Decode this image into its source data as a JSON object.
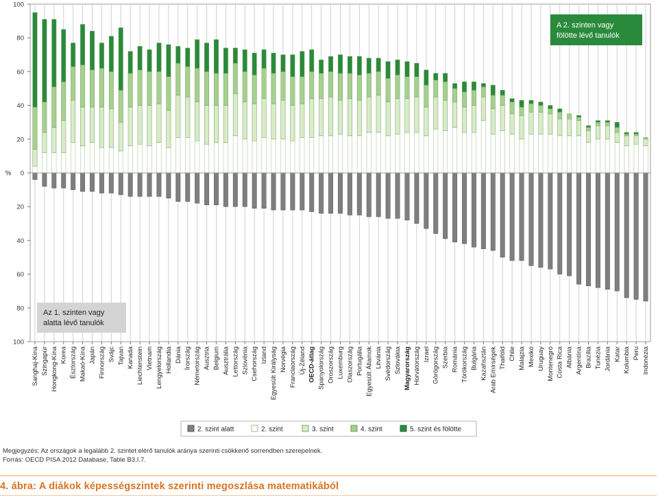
{
  "chart_data": {
    "type": "bar",
    "stacked": true,
    "y_axis_label": "%",
    "y_ticks": [
      100,
      80,
      60,
      40,
      20,
      0,
      20,
      40,
      60,
      80,
      100
    ],
    "ylim": [
      -100,
      100
    ],
    "grid": false,
    "legend_position": "bottom",
    "annotation_top_right": "A 2. szinten vagy fölötte lévő tanulók",
    "annotation_bottom_left": "Az 1. szinten vagy alatta lévő tanulók",
    "bold_categories": [
      "OECD-átlag",
      "Magyarország"
    ],
    "categories": [
      "Sanghaj-Kína",
      "Szingapúr",
      "Hongkong-Kína",
      "Korea",
      "Észtország",
      "Makaó-Kína",
      "Japán",
      "Finnország",
      "Svájc",
      "Tajvan",
      "Kanada",
      "Liechtenstein",
      "Vietnam",
      "Lengyelország",
      "Hollandia",
      "Dánia",
      "Írország",
      "Németország",
      "Ausztria",
      "Belgium",
      "Ausztrália",
      "Lettország",
      "Szlovénia",
      "Csehország",
      "Izland",
      "Egyesült Királyság",
      "Norvégia",
      "Franciaország",
      "Új-Zéland",
      "OECD-átlag",
      "Spanyolország",
      "Oroszország",
      "Luxemburg",
      "Olaszország",
      "Portugália",
      "Egyesült Államok",
      "Litvánia",
      "Svédország",
      "Szlovákia",
      "Magyarország",
      "Horvátország",
      "Izrael",
      "Görögország",
      "Szerbia",
      "Románia",
      "Törökország",
      "Bulgária",
      "Kazahsztán",
      "Arab Emírségek",
      "Thaiföld",
      "Chile",
      "Malajzia",
      "Mexikó",
      "Uruguay",
      "Montenegró",
      "Costa Rica",
      "Albánia",
      "Argentína",
      "Brazília",
      "Tunézia",
      "Jordánia",
      "Katar",
      "Kolumbia",
      "Peru",
      "Indonézia"
    ],
    "series": [
      {
        "name": "2. szint alatt",
        "color": "#7f7f7f",
        "values": [
          -4,
          -8,
          -9,
          -9,
          -10,
          -11,
          -11,
          -12,
          -12,
          -13,
          -14,
          -14,
          -14,
          -14,
          -15,
          -17,
          -17,
          -18,
          -19,
          -19,
          -20,
          -20,
          -20,
          -21,
          -21,
          -22,
          -22,
          -22,
          -22,
          -23,
          -24,
          -24,
          -24,
          -25,
          -25,
          -26,
          -26,
          -27,
          -27,
          -28,
          -30,
          -33,
          -36,
          -39,
          -41,
          -42,
          -44,
          -45,
          -46,
          -50,
          -52,
          -52,
          -55,
          -56,
          -57,
          -60,
          -61,
          -66,
          -67,
          -68,
          -69,
          -70,
          -74,
          -75,
          -76
        ]
      },
      {
        "name": "2. szint",
        "color": "#ffffff",
        "values": [
          4,
          12,
          12,
          12,
          18,
          16,
          18,
          15,
          15,
          13,
          16,
          17,
          16,
          18,
          15,
          21,
          21,
          19,
          17,
          18,
          18,
          22,
          20,
          19,
          21,
          20,
          20,
          19,
          21,
          21,
          22,
          22,
          23,
          22,
          22,
          24,
          24,
          22,
          23,
          24,
          24,
          22,
          26,
          25,
          27,
          24,
          24,
          31,
          23,
          25,
          23,
          20,
          23,
          23,
          23,
          22,
          22,
          22,
          18,
          20,
          20,
          18,
          16,
          17,
          16
        ]
      },
      {
        "name": "3. szint",
        "color": "#d8ecc8",
        "values": [
          10,
          12,
          15,
          19,
          25,
          23,
          21,
          24,
          23,
          17,
          23,
          23,
          24,
          23,
          22,
          25,
          24,
          23,
          23,
          22,
          22,
          25,
          22,
          22,
          23,
          21,
          23,
          21,
          20,
          23,
          22,
          23,
          20,
          22,
          21,
          21,
          22,
          20,
          21,
          20,
          21,
          17,
          19,
          18,
          15,
          15,
          16,
          14,
          15,
          15,
          12,
          14,
          13,
          13,
          12,
          10,
          10,
          9,
          7,
          8,
          8,
          6,
          6,
          5,
          4
        ]
      },
      {
        "name": "4. szint",
        "color": "#a6d08e",
        "values": [
          25,
          18,
          24,
          23,
          20,
          25,
          22,
          23,
          22,
          19,
          20,
          21,
          20,
          19,
          20,
          19,
          18,
          20,
          20,
          19,
          19,
          18,
          18,
          17,
          18,
          18,
          17,
          17,
          16,
          16,
          15,
          15,
          16,
          15,
          15,
          14,
          14,
          14,
          14,
          13,
          12,
          13,
          10,
          11,
          8,
          9,
          9,
          6,
          8,
          6,
          7,
          5,
          5,
          4,
          3,
          4,
          3,
          2,
          2,
          2,
          2,
          3,
          1,
          1,
          1
        ]
      },
      {
        "name": "5. szint és fölötte",
        "color": "#2a8a3c",
        "values": [
          56,
          49,
          40,
          31,
          14,
          24,
          23,
          15,
          21,
          37,
          13,
          14,
          13,
          17,
          19,
          10,
          11,
          17,
          17,
          20,
          15,
          9,
          13,
          13,
          11,
          12,
          10,
          13,
          15,
          13,
          8,
          9,
          11,
          10,
          11,
          9,
          8,
          10,
          9,
          9,
          8,
          9,
          4,
          5,
          3,
          6,
          5,
          2,
          6,
          3,
          2,
          4,
          2,
          2,
          2,
          2,
          0,
          1,
          1,
          1,
          1,
          3,
          1,
          1,
          0
        ]
      }
    ]
  },
  "notes": {
    "line1": "Megjegyzés: Az országok a legalább 2. szintet elérő tanulók aránya szerinti csökkenő sorrendben szerepelnek.",
    "line2": "Forrás: OECD PISA 2012 Database, Table B3.I.7."
  },
  "caption": "4. ábra: A diákok képességszintek szerinti megoszlása matematikából"
}
